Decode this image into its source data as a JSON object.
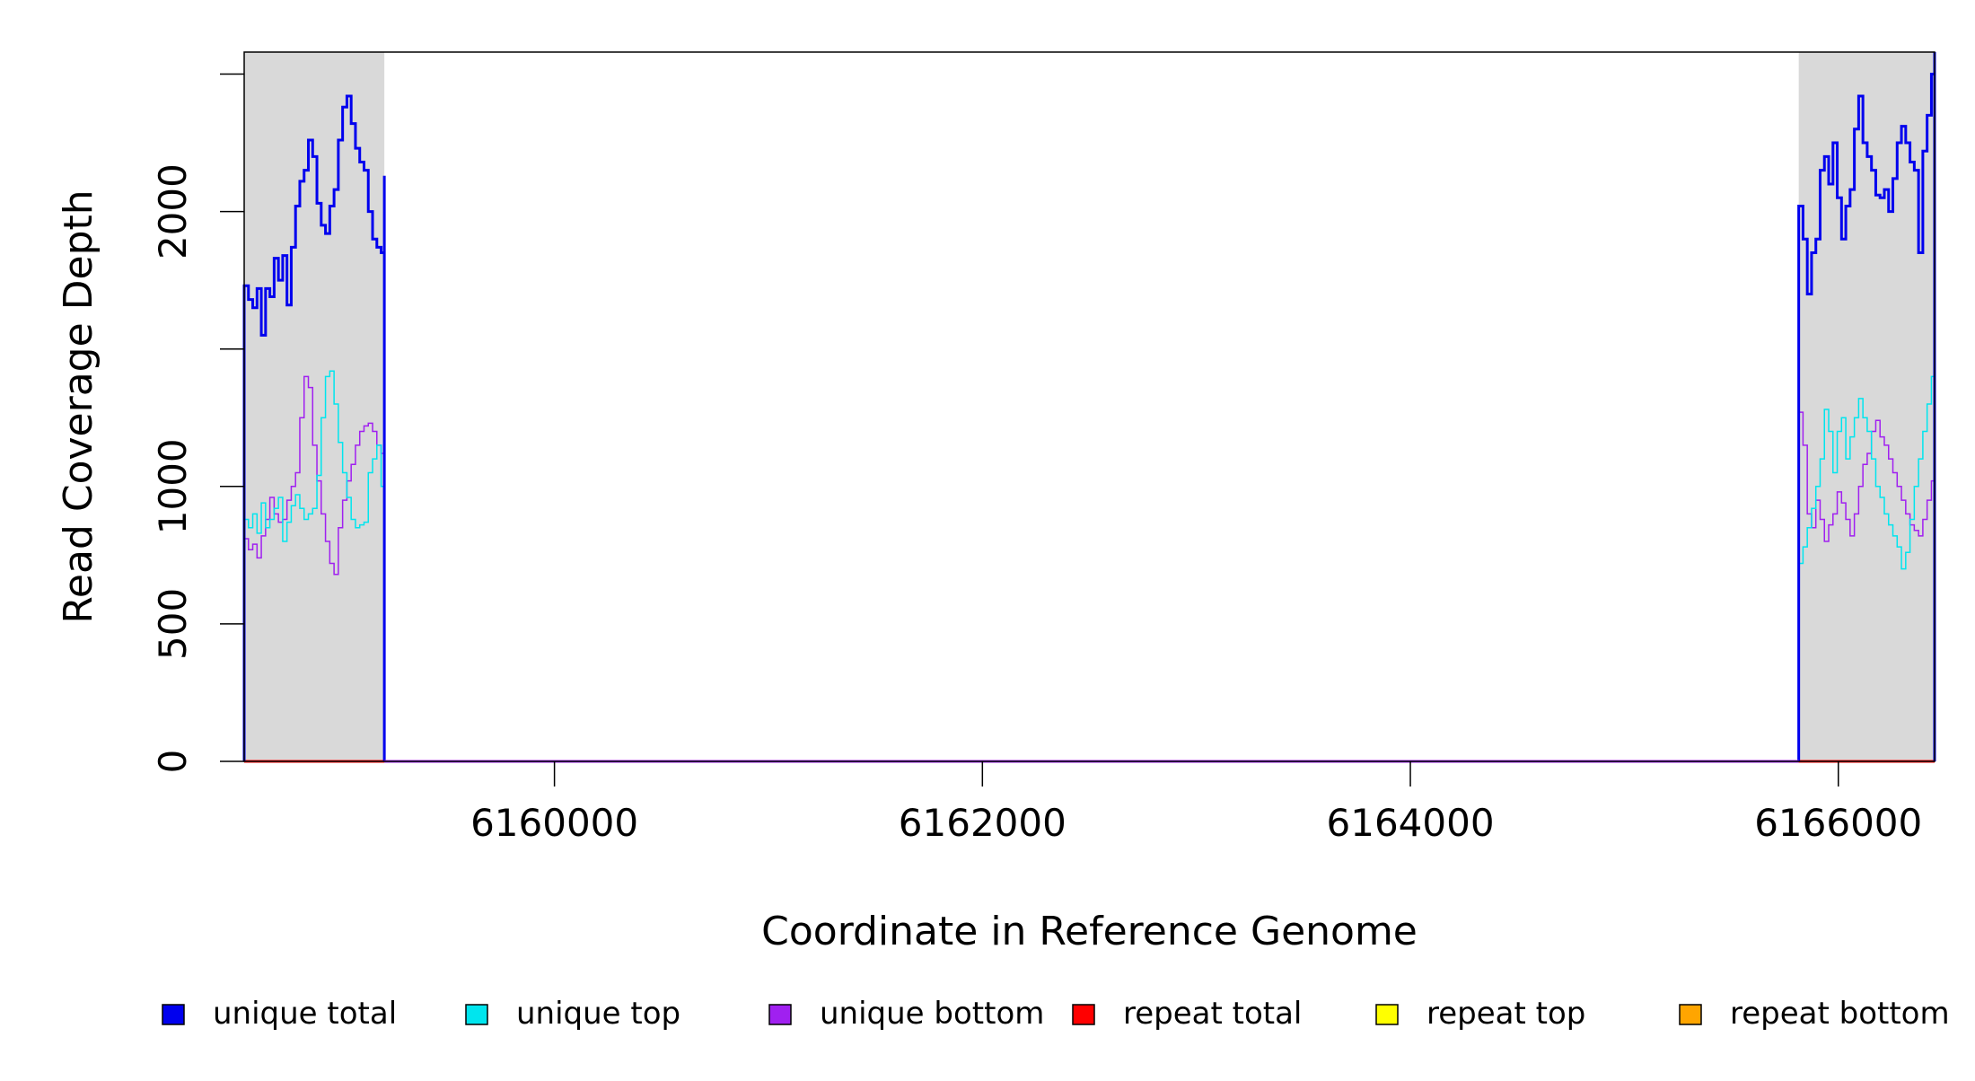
{
  "chart_data": {
    "type": "line",
    "xlabel": "Coordinate in Reference Genome",
    "ylabel": "Read Coverage Depth",
    "xlim": [
      6158550,
      6166450
    ],
    "ylim": [
      0,
      2580
    ],
    "x_ticks": [
      {
        "value": 6160000,
        "label": "6160000"
      },
      {
        "value": 6162000,
        "label": "6162000"
      },
      {
        "value": 6164000,
        "label": "6164000"
      },
      {
        "value": 6166000,
        "label": "6166000"
      }
    ],
    "y_ticks": [
      {
        "value": 0,
        "label": "0"
      },
      {
        "value": 500,
        "label": "500"
      },
      {
        "value": 1000,
        "label": "1000"
      },
      {
        "value": 1500,
        "label": ""
      },
      {
        "value": 2000,
        "label": "2000"
      },
      {
        "value": 2500,
        "label": ""
      }
    ],
    "shaded_regions": [
      {
        "x0": 6158550,
        "x1": 6159205,
        "color": "#d9d9d9"
      },
      {
        "x0": 6165815,
        "x1": 6166450,
        "color": "#d9d9d9"
      }
    ],
    "series": [
      {
        "name": "unique total",
        "color": "#0000ee",
        "width": 3,
        "segments": [
          {
            "x": [
              6158550,
              6158570,
              6158590,
              6158610,
              6158630,
              6158650,
              6158670,
              6158690,
              6158710,
              6158730,
              6158750,
              6158770,
              6158790,
              6158810,
              6158830,
              6158850,
              6158870,
              6158890,
              6158910,
              6158930,
              6158950,
              6158970,
              6158990,
              6159010,
              6159030,
              6159050,
              6159070,
              6159090,
              6159110,
              6159130,
              6159150,
              6159170,
              6159190,
              6159205
            ],
            "y": [
              1730,
              1680,
              1650,
              1720,
              1550,
              1720,
              1690,
              1830,
              1750,
              1840,
              1660,
              1870,
              2020,
              2110,
              2150,
              2260,
              2200,
              2030,
              1950,
              1920,
              2020,
              2080,
              2260,
              2380,
              2420,
              2320,
              2230,
              2180,
              2150,
              2000,
              1900,
              1870,
              1850,
              2130
            ]
          },
          {
            "x": [
              6165815,
              6165835,
              6165855,
              6165875,
              6165895,
              6165915,
              6165935,
              6165955,
              6165975,
              6165995,
              6166015,
              6166035,
              6166055,
              6166075,
              6166095,
              6166115,
              6166135,
              6166155,
              6166175,
              6166195,
              6166215,
              6166235,
              6166255,
              6166275,
              6166295,
              6166315,
              6166335,
              6166355,
              6166375,
              6166395,
              6166415,
              6166435,
              6166450
            ],
            "y": [
              2020,
              1900,
              1700,
              1850,
              1900,
              2150,
              2200,
              2100,
              2250,
              2050,
              1900,
              2020,
              2080,
              2300,
              2420,
              2250,
              2200,
              2150,
              2060,
              2050,
              2080,
              2000,
              2120,
              2250,
              2310,
              2250,
              2180,
              2150,
              1850,
              2220,
              2350,
              2500,
              2580
            ]
          }
        ]
      },
      {
        "name": "unique top",
        "color": "#00e5ee",
        "width": 1.5,
        "segments": [
          {
            "x": [
              6158550,
              6158570,
              6158590,
              6158610,
              6158630,
              6158650,
              6158670,
              6158690,
              6158710,
              6158730,
              6158750,
              6158770,
              6158790,
              6158810,
              6158830,
              6158850,
              6158870,
              6158890,
              6158910,
              6158930,
              6158950,
              6158970,
              6158990,
              6159010,
              6159030,
              6159050,
              6159070,
              6159090,
              6159110,
              6159130,
              6159150,
              6159170,
              6159190,
              6159205
            ],
            "y": [
              880,
              850,
              900,
              830,
              940,
              850,
              880,
              920,
              960,
              800,
              870,
              930,
              970,
              920,
              880,
              900,
              920,
              1040,
              1250,
              1400,
              1420,
              1300,
              1160,
              1050,
              960,
              880,
              850,
              860,
              870,
              1050,
              1100,
              1150,
              1000,
              880
            ]
          },
          {
            "x": [
              6165815,
              6165835,
              6165855,
              6165875,
              6165895,
              6165915,
              6165935,
              6165955,
              6165975,
              6165995,
              6166015,
              6166035,
              6166055,
              6166075,
              6166095,
              6166115,
              6166135,
              6166155,
              6166175,
              6166195,
              6166215,
              6166235,
              6166255,
              6166275,
              6166295,
              6166315,
              6166335,
              6166355,
              6166375,
              6166395,
              6166415,
              6166435,
              6166450
            ],
            "y": [
              720,
              780,
              850,
              920,
              1000,
              1100,
              1280,
              1200,
              1050,
              1200,
              1250,
              1100,
              1180,
              1250,
              1320,
              1250,
              1200,
              1100,
              1000,
              960,
              900,
              860,
              820,
              780,
              700,
              760,
              880,
              1000,
              1100,
              1200,
              1300,
              1400,
              1480
            ]
          }
        ]
      },
      {
        "name": "unique bottom",
        "color": "#a020f0",
        "width": 1.5,
        "segments": [
          {
            "x": [
              6158550,
              6158570,
              6158590,
              6158610,
              6158630,
              6158650,
              6158670,
              6158690,
              6158710,
              6158730,
              6158750,
              6158770,
              6158790,
              6158810,
              6158830,
              6158850,
              6158870,
              6158890,
              6158910,
              6158930,
              6158950,
              6158970,
              6158990,
              6159010,
              6159030,
              6159050,
              6159070,
              6159090,
              6159110,
              6159130,
              6159150,
              6159170,
              6159190,
              6159205
            ],
            "y": [
              810,
              770,
              790,
              740,
              820,
              880,
              960,
              900,
              870,
              880,
              950,
              1000,
              1050,
              1250,
              1400,
              1360,
              1150,
              1020,
              900,
              800,
              720,
              680,
              850,
              950,
              1020,
              1080,
              1150,
              1200,
              1220,
              1230,
              1200,
              1150,
              1120,
              1230
            ]
          },
          {
            "x": [
              6165815,
              6165835,
              6165855,
              6165875,
              6165895,
              6165915,
              6165935,
              6165955,
              6165975,
              6165995,
              6166015,
              6166035,
              6166055,
              6166075,
              6166095,
              6166115,
              6166135,
              6166155,
              6166175,
              6166195,
              6166215,
              6166235,
              6166255,
              6166275,
              6166295,
              6166315,
              6166335,
              6166355,
              6166375,
              6166395,
              6166415,
              6166435,
              6166450
            ],
            "y": [
              1270,
              1150,
              900,
              850,
              950,
              880,
              800,
              860,
              900,
              980,
              940,
              880,
              820,
              900,
              1000,
              1080,
              1120,
              1200,
              1240,
              1180,
              1150,
              1100,
              1050,
              1000,
              950,
              900,
              860,
              840,
              820,
              880,
              950,
              1020,
              1060
            ]
          }
        ]
      },
      {
        "name": "repeat total",
        "color": "#ff0000",
        "width": 3,
        "segments": [
          {
            "x": [
              6158550,
              6166450
            ],
            "y": [
              0,
              0
            ]
          }
        ]
      },
      {
        "name": "repeat top",
        "color": "#ffff00",
        "width": 1.5,
        "segments": [
          {
            "x": [
              6158550,
              6166450
            ],
            "y": [
              0,
              0
            ]
          }
        ]
      },
      {
        "name": "repeat bottom",
        "color": "#ffa500",
        "width": 2,
        "segments": [
          {
            "x": [
              6158550,
              6166450
            ],
            "y": [
              0,
              0
            ]
          }
        ]
      }
    ],
    "legend_position": "bottom",
    "legend": [
      {
        "label": "unique total",
        "color": "#0000ee"
      },
      {
        "label": "unique top",
        "color": "#00e5ee"
      },
      {
        "label": "unique bottom",
        "color": "#a020f0"
      },
      {
        "label": "repeat total",
        "color": "#ff0000"
      },
      {
        "label": "repeat top",
        "color": "#ffff00"
      },
      {
        "label": "repeat bottom",
        "color": "#ffa500"
      }
    ]
  }
}
